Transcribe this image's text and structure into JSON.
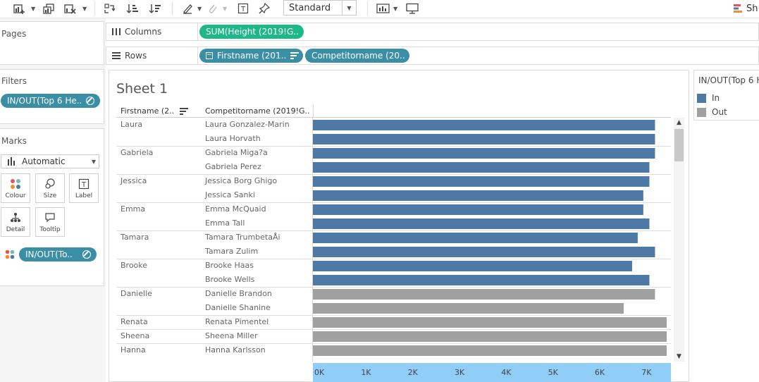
{
  "toolbar": {
    "fit_label": "Standard",
    "show_me_label": "Sh"
  },
  "panels": {
    "pages_title": "Pages",
    "filters_title": "Filters",
    "filter_pill": "IN/OUT(Top 6 He..",
    "marks_title": "Marks",
    "marks_type": "Automatic",
    "mark_buttons": [
      {
        "label": "Colour",
        "icon": "colour-icon"
      },
      {
        "label": "Size",
        "icon": "size-icon"
      },
      {
        "label": "Label",
        "icon": "label-icon"
      },
      {
        "label": "Detail",
        "icon": "detail-icon"
      },
      {
        "label": "Tooltip",
        "icon": "tooltip-icon"
      }
    ],
    "color_pill": "IN/OUT(To.."
  },
  "shelves": {
    "columns_label": "Columns",
    "columns_pill": "SUM(Height (2019!G..",
    "rows_label": "Rows",
    "rows_pill_1": "Firstname (201..",
    "rows_pill_2": "Competitorname (20.."
  },
  "sheet": {
    "title": "Sheet 1",
    "header_firstname": "Firstname (2..",
    "header_competitor": "Competitorname (2019!G.."
  },
  "legend": {
    "title": "IN/OUT(Top 6 H",
    "items": [
      {
        "label": "In",
        "color": "#4e79a7"
      },
      {
        "label": "Out",
        "color": "#a0a0a0"
      }
    ]
  },
  "colors": {
    "in": "#4e79a7",
    "out": "#a0a0a0",
    "axis_band": "#90cdf7",
    "pill_teal": "#3a8fa6",
    "pill_green": "#1db887"
  },
  "chart_data": {
    "type": "bar",
    "orientation": "horizontal",
    "xlim": [
      0,
      7600
    ],
    "x_ticks": [
      "0K",
      "1K",
      "2K",
      "3K",
      "4K",
      "5K",
      "6K",
      "7K"
    ],
    "rows": [
      {
        "firstname": "Laura",
        "competitor": "Laura Gonzalez-Marin",
        "value": 7320,
        "group": "In"
      },
      {
        "firstname": "",
        "competitor": "Laura Horvath",
        "value": 7320,
        "group": "In"
      },
      {
        "firstname": "Gabriela",
        "competitor": "Gabriela Miga?a",
        "value": 7320,
        "group": "In"
      },
      {
        "firstname": "",
        "competitor": "Gabriela Perez",
        "value": 7200,
        "group": "In"
      },
      {
        "firstname": "Jessica",
        "competitor": "Jessica Borg Ghigo",
        "value": 7200,
        "group": "In"
      },
      {
        "firstname": "",
        "competitor": "Jessica Sanki",
        "value": 7070,
        "group": "In"
      },
      {
        "firstname": "Emma",
        "competitor": "Emma McQuaid",
        "value": 7070,
        "group": "In"
      },
      {
        "firstname": "",
        "competitor": "Emma Tall",
        "value": 7200,
        "group": "In"
      },
      {
        "firstname": "Tamara",
        "competitor": "Tamara TrumbetaÅi",
        "value": 6950,
        "group": "In"
      },
      {
        "firstname": "",
        "competitor": "Tamara Zulim",
        "value": 7320,
        "group": "In"
      },
      {
        "firstname": "Brooke",
        "competitor": "Brooke Haas",
        "value": 6830,
        "group": "In"
      },
      {
        "firstname": "",
        "competitor": "Brooke Wells",
        "value": 7200,
        "group": "In"
      },
      {
        "firstname": "Danielle",
        "competitor": "Danielle Brandon",
        "value": 7320,
        "group": "Out"
      },
      {
        "firstname": "",
        "competitor": "Danielle Shanine",
        "value": 6650,
        "group": "Out"
      },
      {
        "firstname": "Renata",
        "competitor": "Renata Pimentel",
        "value": 7570,
        "group": "Out"
      },
      {
        "firstname": "Sheena",
        "competitor": "Sheena Miller",
        "value": 7570,
        "group": "Out"
      },
      {
        "firstname": "Hanna",
        "competitor": "Hanna Karlsson",
        "value": 7570,
        "group": "Out"
      }
    ]
  }
}
